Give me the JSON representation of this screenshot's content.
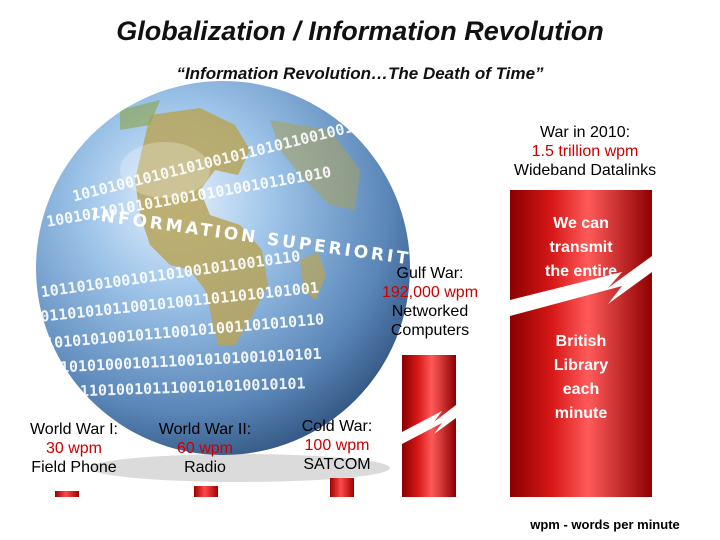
{
  "title": "Globalization / Information Revolution",
  "subtitle": "“Information Revolution…The Death of Time”",
  "globe": {
    "text": "INFORMATION SUPERIORITY"
  },
  "chart_data": {
    "type": "bar",
    "unit_note": "wpm - words per minute",
    "categories": [
      "World War I",
      "World War II",
      "Cold War",
      "Gulf War",
      "War in 2010"
    ],
    "values": [
      30,
      60,
      100,
      192000,
      1500000000000
    ],
    "bars": [
      {
        "era": "World War I:",
        "rate": "30 wpm",
        "medium": [
          "Field Phone"
        ]
      },
      {
        "era": "World War II:",
        "rate": "60 wpm",
        "medium": [
          "Radio"
        ]
      },
      {
        "era": "Cold War:",
        "rate": "100 wpm",
        "medium": [
          "SATCOM"
        ]
      },
      {
        "era": "Gulf War:",
        "rate": "192,000 wpm",
        "medium": [
          "Networked",
          "Computers"
        ]
      },
      {
        "era": "War in 2010:",
        "rate": "1.5 trillion wpm",
        "medium": [
          "Wideband Datalinks"
        ]
      }
    ],
    "bar_text_top": [
      "We can",
      "transmit",
      "the entire"
    ],
    "bar_text_bottom": [
      "British",
      "Library",
      "each",
      "minute"
    ],
    "colors": {
      "bar_light": "#ff4a4a",
      "bar_dark": "#9c0000",
      "rate_text": "#cc0000"
    }
  }
}
